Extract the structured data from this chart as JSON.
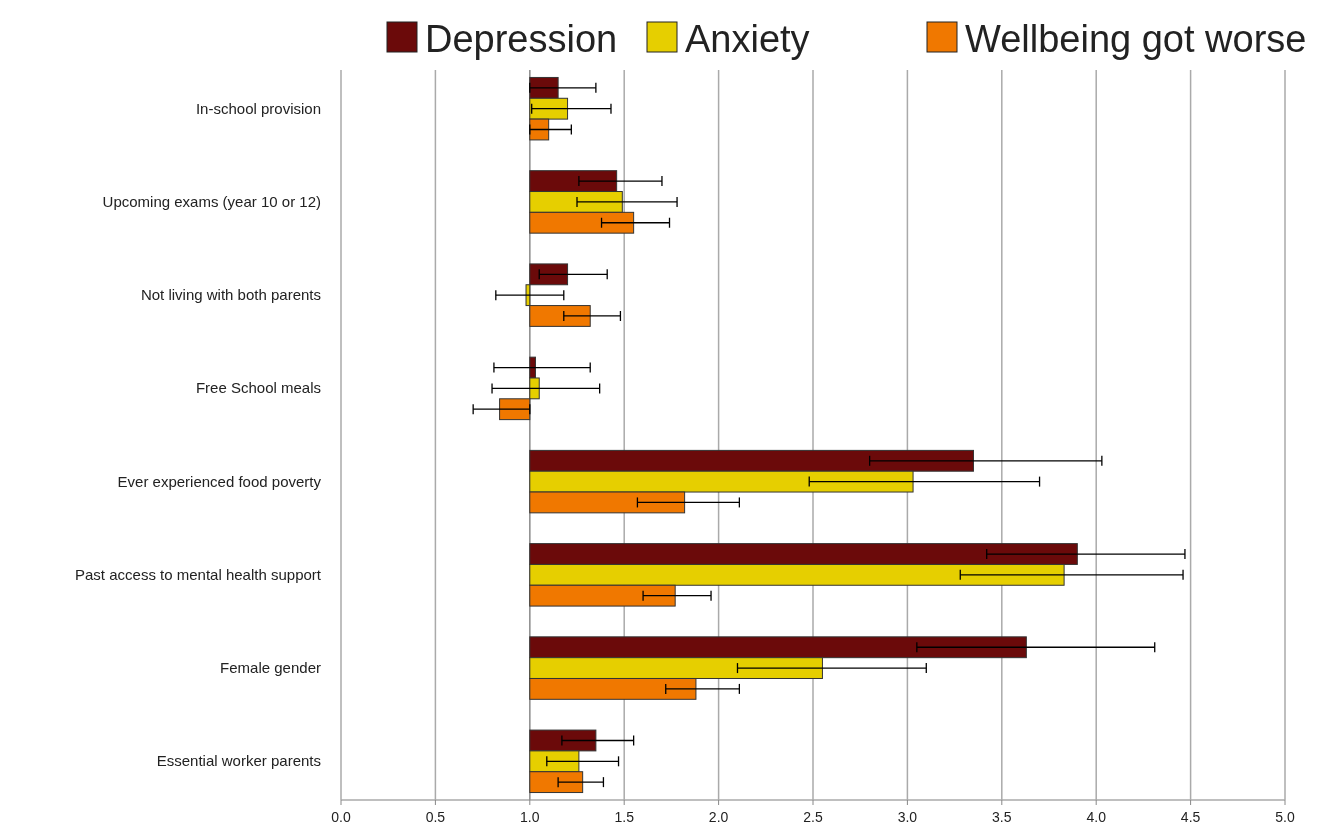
{
  "chart_data": {
    "type": "bar",
    "orientation": "horizontal",
    "categories": [
      "In-school provision",
      "Upcoming exams (year 10 or 12)",
      "Not living with both parents",
      "Free School meals",
      "Ever experienced food poverty",
      "Past access to mental health support",
      "Female gender",
      "Essential worker parents"
    ],
    "series": [
      {
        "name": "Depression",
        "color": "#6b0a0a",
        "base": [
          1,
          1,
          1,
          1,
          1,
          1,
          1,
          1
        ],
        "values": [
          0.15,
          0.46,
          0.2,
          0.03,
          2.35,
          2.9,
          2.63,
          0.35
        ],
        "errors": [
          [
            1.0,
            1.35
          ],
          [
            1.26,
            1.7
          ],
          [
            1.05,
            1.41
          ],
          [
            0.81,
            1.32
          ],
          [
            2.8,
            4.03
          ],
          [
            3.42,
            4.47
          ],
          [
            3.05,
            4.31
          ],
          [
            1.17,
            1.55
          ]
        ]
      },
      {
        "name": "Anxiety",
        "color": "#e6cf00",
        "base": [
          1,
          1,
          1,
          1,
          1,
          1,
          1,
          1
        ],
        "values": [
          0.2,
          0.49,
          -0.02,
          0.05,
          2.03,
          2.83,
          1.55,
          0.26
        ],
        "errors": [
          [
            1.01,
            1.43
          ],
          [
            1.25,
            1.78
          ],
          [
            0.82,
            1.18
          ],
          [
            0.8,
            1.37
          ],
          [
            2.48,
            3.7
          ],
          [
            3.28,
            4.46
          ],
          [
            2.1,
            3.1
          ],
          [
            1.09,
            1.47
          ]
        ]
      },
      {
        "name": "Wellbeing got worse",
        "color": "#f07800",
        "base": [
          1,
          1,
          1,
          1,
          1,
          1,
          1,
          1
        ],
        "values": [
          0.1,
          0.55,
          0.32,
          -0.16,
          0.82,
          0.77,
          0.88,
          0.28
        ],
        "errors": [
          [
            1.0,
            1.22
          ],
          [
            1.38,
            1.74
          ],
          [
            1.18,
            1.48
          ],
          [
            0.7,
            1.0
          ],
          [
            1.57,
            2.11
          ],
          [
            1.6,
            1.96
          ],
          [
            1.72,
            2.11
          ],
          [
            1.15,
            1.39
          ]
        ]
      }
    ],
    "ref_lines": [
      {
        "axis": "x",
        "value": 1,
        "color": "#888888"
      }
    ],
    "xlim": [
      0,
      5
    ],
    "xticks": [
      {
        "value": 0,
        "label": "0.0"
      },
      {
        "value": 0.5,
        "label": "0.5"
      },
      {
        "value": 1,
        "label": "1.0"
      },
      {
        "value": 1.5,
        "label": "1.5"
      },
      {
        "value": 2,
        "label": "2.0"
      },
      {
        "value": 2.5,
        "label": "2.5"
      },
      {
        "value": 3,
        "label": "3.0"
      },
      {
        "value": 3.5,
        "label": "3.5"
      },
      {
        "value": 4,
        "label": "4.0"
      },
      {
        "value": 4.5,
        "label": "4.5"
      },
      {
        "value": 5,
        "label": "5.0"
      }
    ],
    "grid": "x",
    "legend": "top right"
  }
}
